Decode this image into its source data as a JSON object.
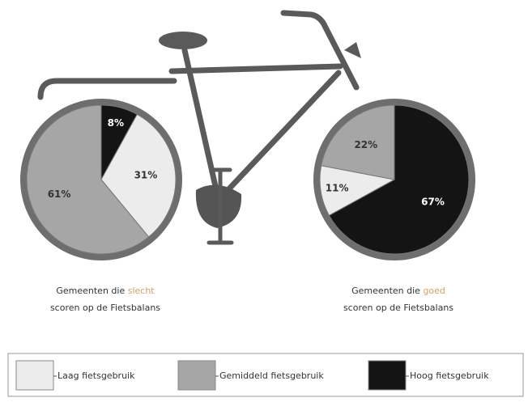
{
  "chart_data": [
    {
      "type": "pie",
      "caption": {
        "before": "Gemeenten die",
        "highlight": "slecht",
        "after": "scoren op de Fietsbalans"
      },
      "categories": [
        "Hoog fietsgebruik",
        "Laag fietsgebruik",
        "Gemiddeld fietsgebruik"
      ],
      "values": [
        8,
        31,
        61
      ],
      "value_labels": [
        "8%",
        "31%",
        "61%"
      ],
      "colors": [
        "#141414",
        "#ececec",
        "#a6a6a6"
      ]
    },
    {
      "type": "pie",
      "caption": {
        "before": "Gemeenten die",
        "highlight": "goed",
        "after": "scoren op de Fietsbalans"
      },
      "categories": [
        "Hoog fietsgebruik",
        "Laag fietsgebruik",
        "Gemiddeld fietsgebruik"
      ],
      "values": [
        67,
        11,
        22
      ],
      "value_labels": [
        "67%",
        "11%",
        "22%"
      ],
      "colors": [
        "#141414",
        "#ececec",
        "#a6a6a6"
      ]
    }
  ]
}
